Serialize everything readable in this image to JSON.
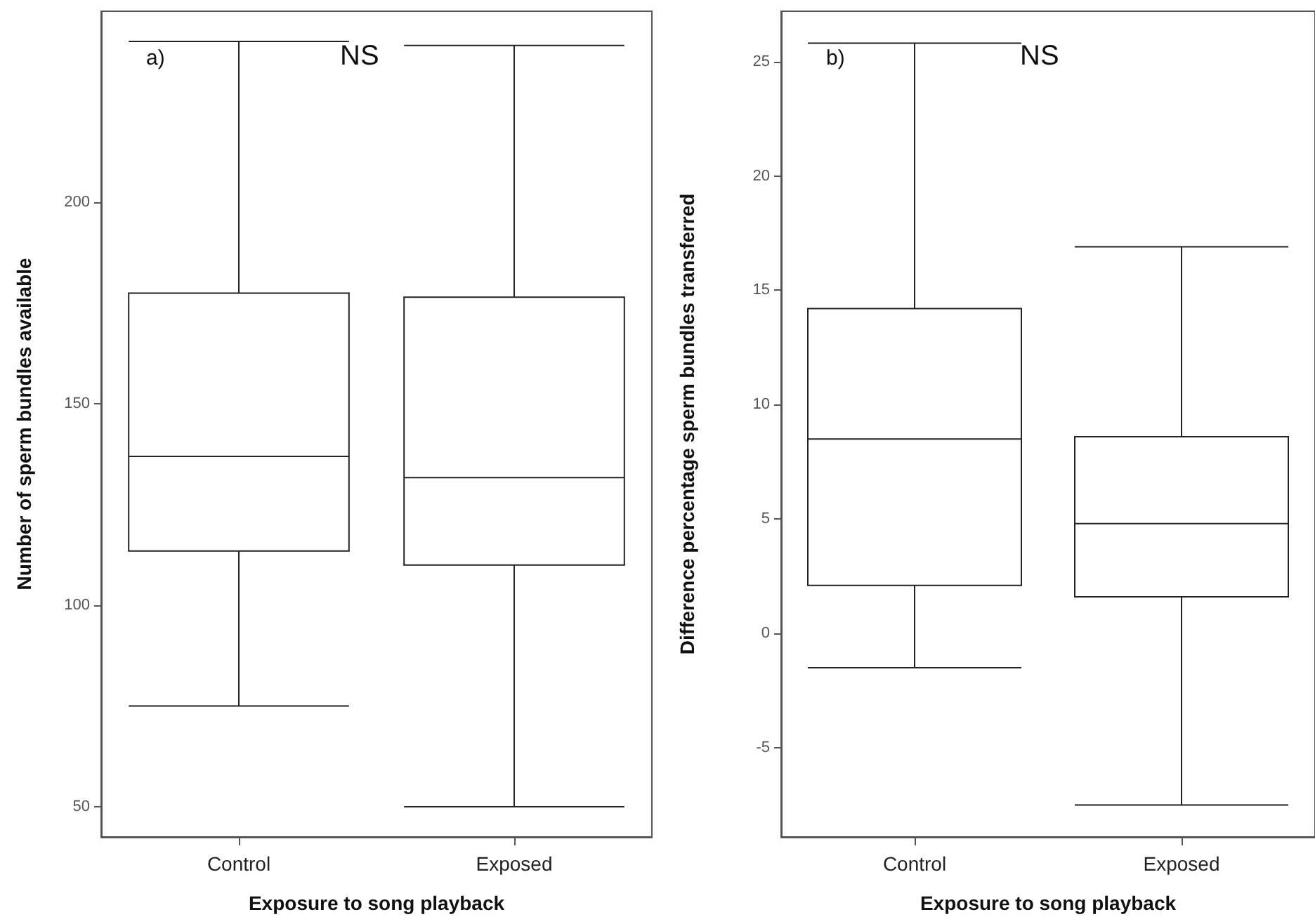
{
  "chart_data": [
    {
      "type": "box",
      "xlabel": "Exposure to song playback",
      "ylabel": "Number of sperm bundles available",
      "categories": [
        "Control",
        "Exposed"
      ],
      "ylim": [
        42.5,
        247.5
      ],
      "yticks": [
        50,
        100,
        150,
        200
      ],
      "grid": false,
      "annotations": [
        "a)",
        "NS"
      ],
      "boxes": [
        {
          "low": 75,
          "q1": 113.5,
          "median": 137,
          "q3": 177.5,
          "high": 240
        },
        {
          "low": 50,
          "q1": 110,
          "median": 131.7,
          "q3": 176.5,
          "high": 239
        }
      ]
    },
    {
      "type": "box",
      "xlabel": "Exposure to song playback",
      "ylabel": "Difference percentage sperm bundles transferred",
      "categories": [
        "Control",
        "Exposed"
      ],
      "ylim": [
        -8.9,
        27.2
      ],
      "yticks": [
        -5,
        0,
        5,
        10,
        15,
        20,
        25
      ],
      "grid": false,
      "annotations": [
        "b)",
        "NS"
      ],
      "boxes": [
        {
          "low": -1.5,
          "q1": 2.1,
          "median": 8.5,
          "q3": 14.2,
          "high": 25.8
        },
        {
          "low": -7.5,
          "q1": 1.6,
          "median": 4.8,
          "q3": 8.6,
          "high": 16.9
        }
      ]
    }
  ]
}
